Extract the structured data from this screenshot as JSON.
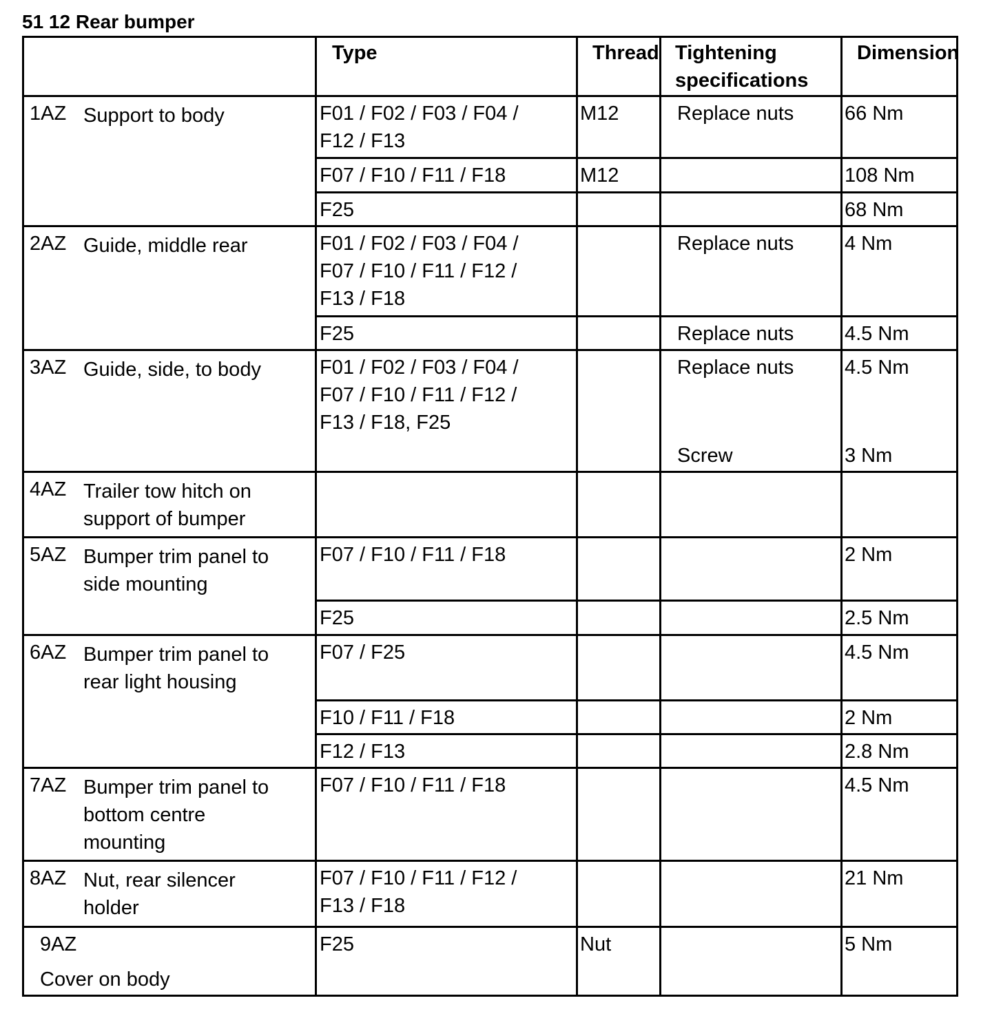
{
  "title": "51 12 Rear bumper",
  "table": {
    "header": [
      [
        "Type"
      ],
      [
        "Thread"
      ],
      [
        "Tightening",
        "specifications"
      ],
      [
        "Dimension"
      ]
    ],
    "groups": [
      {
        "id": "1AZ",
        "name": [
          "Support to body"
        ],
        "rows": [
          [
            [
              "F01 / F02 / F03 / F04 /",
              "F12 / F13"
            ],
            [
              "M12"
            ],
            [
              "Replace nuts"
            ],
            [
              "66 Nm"
            ]
          ],
          [
            [
              "F07 / F10 / F11 / F18"
            ],
            [
              "M12"
            ],
            null,
            [
              "108 Nm"
            ]
          ],
          [
            [
              "F25"
            ],
            null,
            null,
            [
              "68 Nm"
            ]
          ]
        ]
      },
      {
        "id": "2AZ",
        "name": [
          "Guide, middle rear"
        ],
        "rows": [
          [
            [
              "F01 / F02 / F03 / F04 /",
              "F07 / F10 / F11 / F12 /",
              "F13 / F18"
            ],
            null,
            [
              "Replace nuts"
            ],
            [
              "4 Nm"
            ]
          ],
          [
            [
              "F25"
            ],
            null,
            [
              "Replace nuts"
            ],
            [
              "4.5 Nm"
            ]
          ]
        ]
      },
      {
        "id": "3AZ",
        "name": [
          "Guide, side, to body"
        ],
        "rows": [
          [
            [
              "F01 / F02 / F03 / F04 /",
              "F07 / F10 / F11 / F12 /",
              "F13 / F18, F25"
            ],
            null,
            [
              "Replace nuts",
              "Screw"
            ],
            [
              "4.5 Nm",
              "3 Nm"
            ]
          ]
        ]
      },
      {
        "id": "4AZ",
        "name": [
          "Trailer tow hitch on",
          "support of bumper"
        ],
        "rows": [
          [
            null,
            null,
            null,
            null
          ]
        ]
      },
      {
        "id": "5AZ",
        "name": [
          "Bumper trim panel to",
          "side mounting"
        ],
        "rows": [
          [
            [
              "F07 / F10 / F11 / F18"
            ],
            null,
            null,
            [
              "2 Nm"
            ]
          ],
          [
            [
              "F25"
            ],
            null,
            null,
            [
              "2.5 Nm"
            ]
          ]
        ]
      },
      {
        "id": "6AZ",
        "name": [
          "Bumper trim panel to",
          "rear light housing"
        ],
        "rows": [
          [
            [
              "F07 / F25"
            ],
            null,
            null,
            [
              "4.5 Nm"
            ]
          ],
          [
            [
              "F10 / F11 / F18"
            ],
            null,
            null,
            [
              "2 Nm"
            ]
          ],
          [
            [
              "F12 / F13"
            ],
            null,
            null,
            [
              "2.8 Nm"
            ]
          ]
        ]
      },
      {
        "id": "7AZ",
        "name": [
          "Bumper trim panel to",
          "bottom centre",
          "mounting"
        ],
        "rows": [
          [
            [
              "F07 / F10 / F11 / F18"
            ],
            null,
            null,
            [
              "4.5 Nm"
            ]
          ]
        ]
      },
      {
        "id": "8AZ",
        "name": [
          "Nut, rear silencer",
          "holder"
        ],
        "rows": [
          [
            [
              "F07 / F10 / F11 / F12 /",
              "F13 / F18"
            ],
            null,
            null,
            [
              "21 Nm"
            ]
          ]
        ]
      },
      {
        "id": "9AZ",
        "name": [
          "Cover on body"
        ],
        "rows": [
          [
            [
              "F25"
            ],
            [
              "Nut"
            ],
            null,
            [
              "5 Nm"
            ]
          ]
        ]
      }
    ]
  }
}
